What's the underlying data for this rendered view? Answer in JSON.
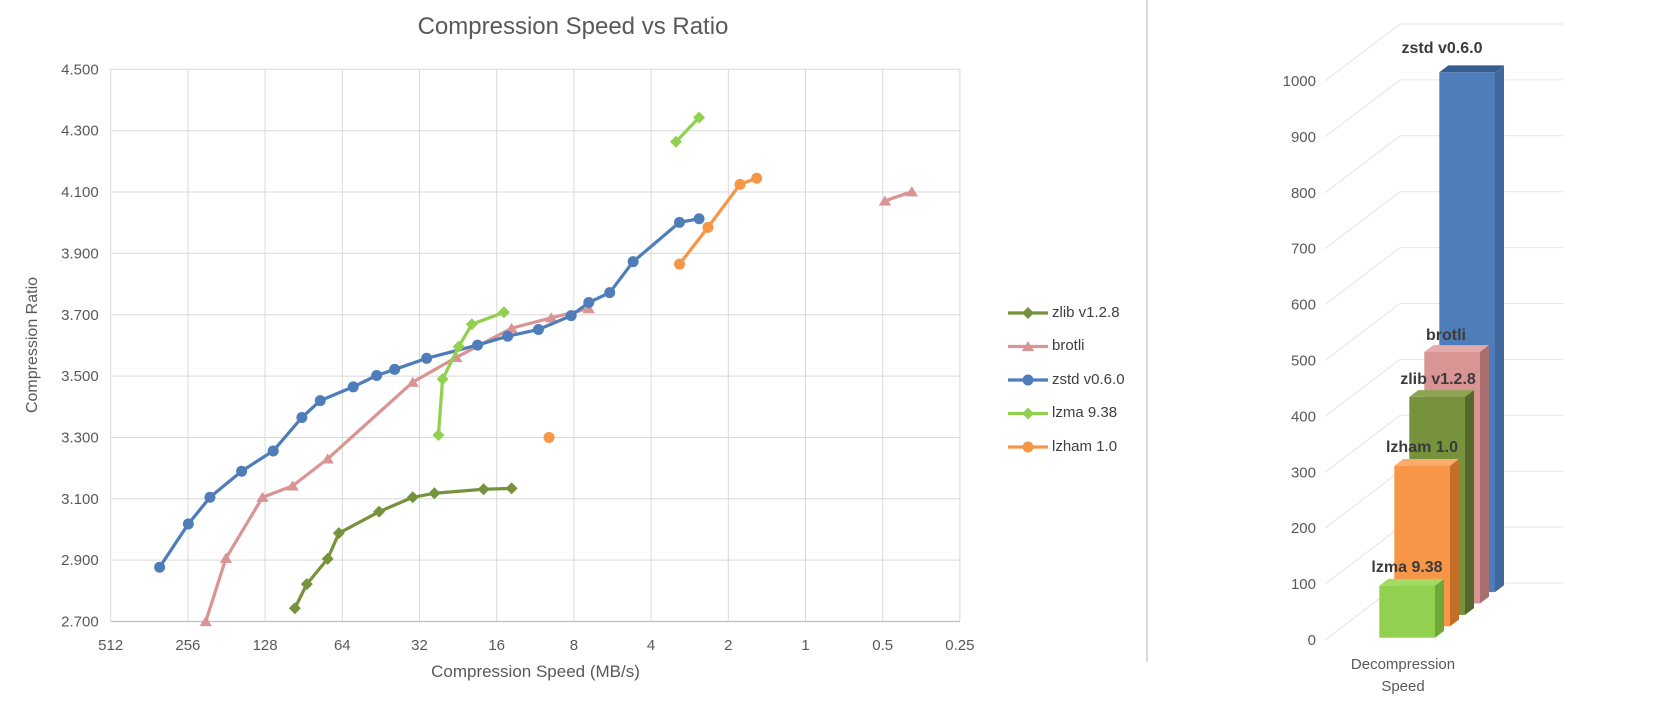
{
  "left_chart": {
    "title": "Compression Speed vs Ratio",
    "x_title": "Compression Speed (MB/s)",
    "y_title": "Compression Ratio",
    "x_ticks": [
      "512",
      "256",
      "128",
      "64",
      "32",
      "16",
      "8",
      "4",
      "2",
      "1",
      "0.5",
      "0.25"
    ],
    "y_ticks": [
      "2.700",
      "2.900",
      "3.100",
      "3.300",
      "3.500",
      "3.700",
      "3.900",
      "4.100",
      "4.300",
      "4.500"
    ]
  },
  "right_chart": {
    "x_label_line1": "Decompression",
    "x_label_line2": "Speed",
    "y_ticks": [
      "0",
      "100",
      "200",
      "300",
      "400",
      "500",
      "600",
      "700",
      "800",
      "900",
      "1000"
    ]
  },
  "colors": {
    "gridline": "#D9D9D9",
    "axis_line": "#BFBFBF",
    "text": "#595959"
  },
  "chart_data": [
    {
      "type": "line",
      "title": "Compression Speed vs Ratio",
      "xlabel": "Compression Speed (MB/s)",
      "ylabel": "Compression Ratio",
      "x_scale": "log2_reversed",
      "xlim": [
        512,
        0.25
      ],
      "ylim": [
        2.7,
        4.5
      ],
      "x_tick_values": [
        512,
        256,
        128,
        64,
        32,
        16,
        8,
        4,
        2,
        1,
        0.5,
        0.25
      ],
      "y_tick_step": 0.2,
      "legend_position": "right",
      "series": [
        {
          "name": "zlib v1.2.8",
          "color": "#76923C",
          "marker": "diamond",
          "segments": [
            [
              [
                98,
                2.743
              ],
              [
                88,
                2.822
              ],
              [
                73,
                2.904
              ],
              [
                66,
                2.988
              ],
              [
                46,
                3.058
              ],
              [
                34,
                3.105
              ],
              [
                28,
                3.118
              ],
              [
                18,
                3.131
              ],
              [
                14,
                3.134
              ]
            ]
          ]
        },
        {
          "name": "brotli",
          "color": "#D99594",
          "marker": "triangle",
          "segments": [
            [
              [
                218,
                2.7
              ],
              [
                182,
                2.906
              ],
              [
                131,
                3.105
              ],
              [
                100,
                3.142
              ],
              [
                73,
                3.23
              ],
              [
                34,
                3.48
              ],
              [
                23,
                3.561
              ],
              [
                14,
                3.656
              ],
              [
                9.8,
                3.69
              ],
              [
                7,
                3.72
              ]
            ],
            [
              [
                0.49,
                4.071
              ],
              [
                0.385,
                4.101
              ]
            ]
          ]
        },
        {
          "name": "zstd v0.6.0",
          "color": "#4E7DBA",
          "marker": "circle",
          "segments": [
            [
              [
                330,
                2.877
              ],
              [
                255,
                3.018
              ],
              [
                210,
                3.105
              ],
              [
                158,
                3.19
              ],
              [
                119,
                3.256
              ],
              [
                92,
                3.365
              ],
              [
                78,
                3.42
              ],
              [
                58,
                3.465
              ],
              [
                47,
                3.502
              ],
              [
                40,
                3.522
              ],
              [
                30,
                3.558
              ],
              [
                19,
                3.601
              ],
              [
                14.5,
                3.63
              ],
              [
                11,
                3.652
              ],
              [
                8.2,
                3.697
              ],
              [
                7,
                3.74
              ],
              [
                5.8,
                3.772
              ],
              [
                4.7,
                3.873
              ],
              [
                3.1,
                4.001
              ],
              [
                2.6,
                4.013
              ]
            ]
          ]
        },
        {
          "name": "lzma 9.38",
          "color": "#92D050",
          "marker": "diamond",
          "segments": [
            [
              [
                27,
                3.308
              ],
              [
                26,
                3.49
              ],
              [
                22.5,
                3.596
              ],
              [
                20,
                3.669
              ],
              [
                15,
                3.708
              ]
            ],
            [
              [
                3.2,
                4.264
              ],
              [
                2.6,
                4.343
              ]
            ]
          ]
        },
        {
          "name": "lzham 1.0",
          "color": "#F79646",
          "marker": "circle",
          "segments": [
            [
              [
                10,
                3.3
              ]
            ],
            [
              [
                3.1,
                3.865
              ],
              [
                2.4,
                3.985
              ],
              [
                1.8,
                4.125
              ],
              [
                1.55,
                4.145
              ]
            ]
          ]
        }
      ]
    },
    {
      "type": "bar",
      "variant": "3d",
      "categories": [
        "Decompression Speed"
      ],
      "ylim": [
        0,
        1000
      ],
      "y_tick_step": 100,
      "bars_front_to_back": [
        {
          "name": "lzma 9.38",
          "value": 93,
          "color": "#92D050",
          "side": "#6FA839",
          "top": "#A3DA64"
        },
        {
          "name": "lzham 1.0",
          "value": 287,
          "color": "#F79646",
          "side": "#C46F28",
          "top": "#F9AC6C"
        },
        {
          "name": "zlib v1.2.8",
          "value": 390,
          "color": "#76923C",
          "side": "#55682B",
          "top": "#8BA553"
        },
        {
          "name": "brotli",
          "value": 450,
          "color": "#D99594",
          "side": "#A86F6E",
          "top": "#E2ABAA"
        },
        {
          "name": "zstd v0.6.0",
          "value": 930,
          "color": "#4E7DBA",
          "side": "#40689C",
          "top": "#365C90"
        }
      ]
    }
  ]
}
